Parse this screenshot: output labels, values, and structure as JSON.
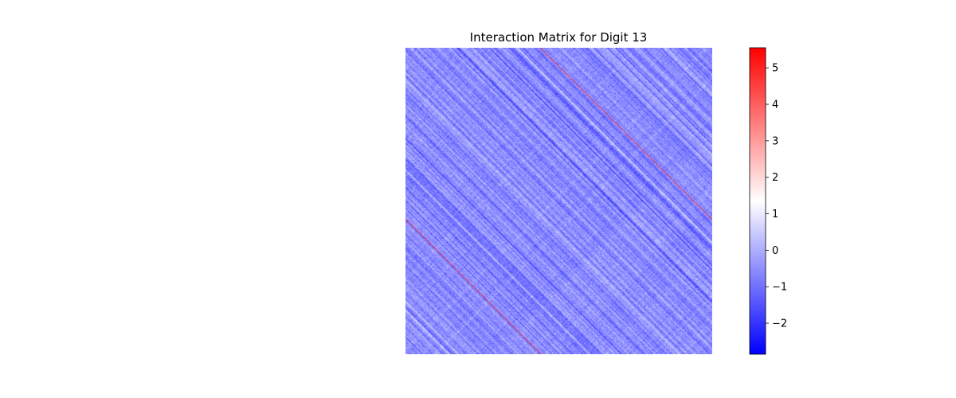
{
  "chart_data": {
    "type": "heatmap",
    "title": "Interaction Matrix for Digit 13",
    "colormap": "bwr",
    "colormap_stops": [
      "#0000ff",
      "#ffffff",
      "#ff0000"
    ],
    "vmin": -2.85,
    "vmax": 5.55,
    "colorbar_ticks": [
      {
        "value": 5,
        "label": "5"
      },
      {
        "value": 4,
        "label": "4"
      },
      {
        "value": 3,
        "label": "3"
      },
      {
        "value": 2,
        "label": "2"
      },
      {
        "value": 1,
        "label": "1"
      },
      {
        "value": 0,
        "label": "0"
      },
      {
        "value": -1,
        "label": "−1"
      },
      {
        "value": -2,
        "label": "−2"
      }
    ],
    "axes_visible": false,
    "matrix_description": {
      "typical_value_range": [
        -2.3,
        1.2
      ],
      "pattern": "diagonal banded structure (values constant along diagonals)",
      "high_value_lines": [
        {
          "offset_fraction": 0.44,
          "value": 5.3,
          "extent": "full"
        },
        {
          "offset_fraction": -0.56,
          "value": 5.3,
          "extent": "partial"
        }
      ]
    }
  }
}
